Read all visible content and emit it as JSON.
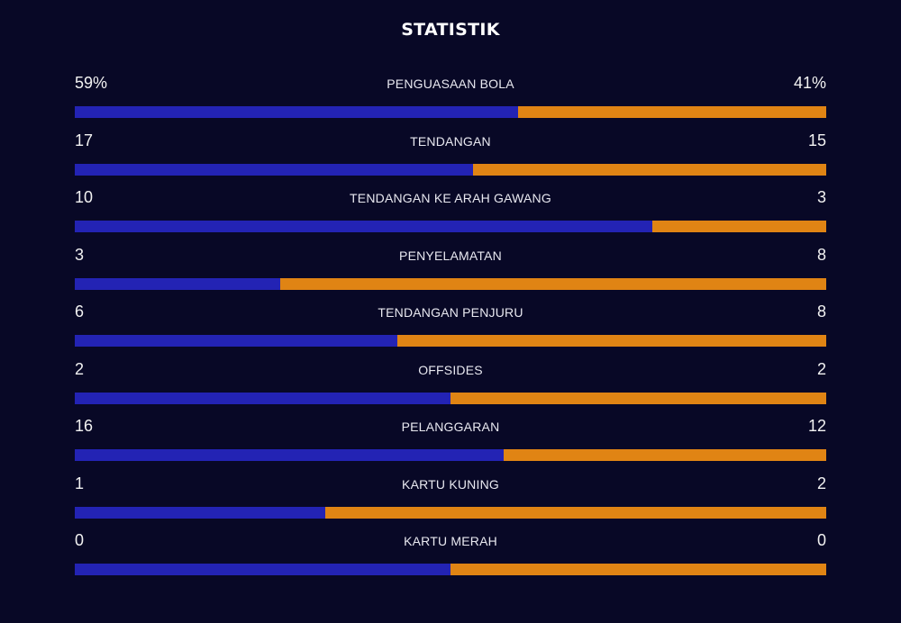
{
  "title": "STATISTIK",
  "colors": {
    "background": "#080826",
    "home_bar": "#2323b4",
    "away_bar": "#e08414"
  },
  "stats": [
    {
      "label": "PENGUASAAN BOLA",
      "home": "59%",
      "away": "41%",
      "home_share": 0.59
    },
    {
      "label": "TENDANGAN",
      "home": "17",
      "away": "15",
      "home_share": 0.53
    },
    {
      "label": "TENDANGAN KE ARAH GAWANG",
      "home": "10",
      "away": "3",
      "home_share": 0.769
    },
    {
      "label": "PENYELAMATAN",
      "home": "3",
      "away": "8",
      "home_share": 0.273
    },
    {
      "label": "TENDANGAN PENJURU",
      "home": "6",
      "away": "8",
      "home_share": 0.429
    },
    {
      "label": "OFFSIDES",
      "home": "2",
      "away": "2",
      "home_share": 0.5
    },
    {
      "label": "PELANGGARAN",
      "home": "16",
      "away": "12",
      "home_share": 0.571
    },
    {
      "label": "KARTU KUNING",
      "home": "1",
      "away": "2",
      "home_share": 0.333
    },
    {
      "label": "KARTU MERAH",
      "home": "0",
      "away": "0",
      "home_share": 0.5
    }
  ]
}
